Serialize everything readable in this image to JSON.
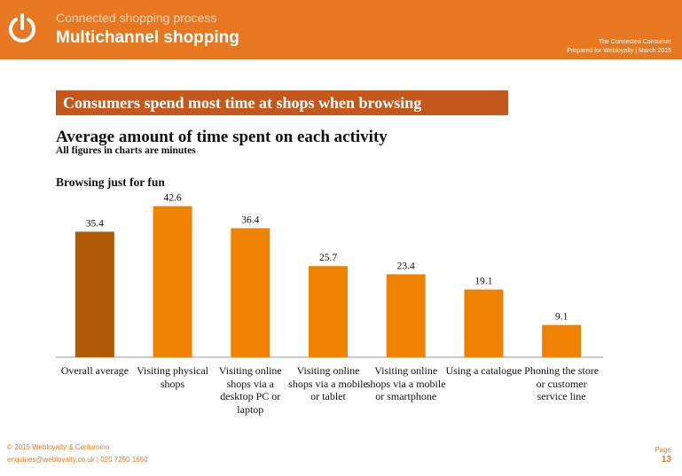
{
  "header": {
    "kicker": "Connected shopping process",
    "title": "Multichannel shopping",
    "report": "The Connected Consumer",
    "prepared": "Prepared for Webloyalty  |  March 2015"
  },
  "banner": "Consumers spend most time at shops when browsing",
  "chart_data": {
    "type": "bar",
    "title": "Average amount of time spent on each activity",
    "subtitle": "All figures in charts are minutes",
    "panel_title": "Browsing just for fun",
    "categories": [
      "Overall average",
      "Visiting physical shops",
      "Visiting online shops via a desktop PC or laptop",
      "Visiting online shops via a mobile or tablet",
      "Visiting online shops via a mobile or smartphone",
      "Using a catalogue",
      "Phoning the store or customer service line"
    ],
    "values": [
      35.4,
      42.6,
      36.4,
      25.7,
      23.4,
      19.1,
      9.1
    ],
    "colors": [
      "#b15a06",
      "#ef8200",
      "#ef8200",
      "#ef8200",
      "#ef8200",
      "#ef8200",
      "#ef8200"
    ],
    "ylim": [
      0,
      45
    ]
  },
  "footer": {
    "copyright": "© 2015 Webloyalty & Conlumino",
    "contact": "enquiries@webloyalty.co.uk  |  020 7290 1650",
    "page_label": "Page",
    "page_number": "13"
  }
}
